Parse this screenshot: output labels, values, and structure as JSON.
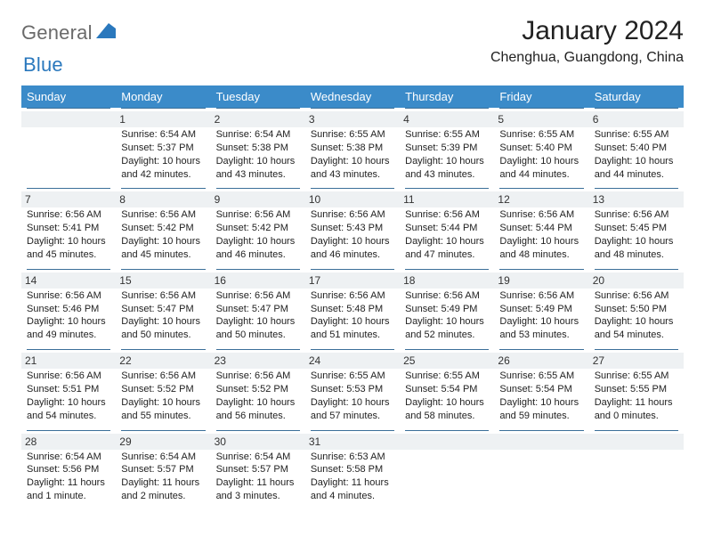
{
  "logo": {
    "word1": "General",
    "word2": "Blue"
  },
  "title": "January 2024",
  "location": "Chenghua, Guangdong, China",
  "colors": {
    "header_bg": "#3b8bc9",
    "header_text": "#ffffff",
    "day_border": "#3b6f99",
    "daynum_bg": "#eef1f3",
    "logo_gray": "#6a6a6a",
    "logo_blue": "#2a78bd",
    "page_bg": "#ffffff"
  },
  "weekdays": [
    "Sunday",
    "Monday",
    "Tuesday",
    "Wednesday",
    "Thursday",
    "Friday",
    "Saturday"
  ],
  "weeks": [
    [
      null,
      {
        "n": "1",
        "sr": "Sunrise: 6:54 AM",
        "ss": "Sunset: 5:37 PM",
        "dl": "Daylight: 10 hours and 42 minutes."
      },
      {
        "n": "2",
        "sr": "Sunrise: 6:54 AM",
        "ss": "Sunset: 5:38 PM",
        "dl": "Daylight: 10 hours and 43 minutes."
      },
      {
        "n": "3",
        "sr": "Sunrise: 6:55 AM",
        "ss": "Sunset: 5:38 PM",
        "dl": "Daylight: 10 hours and 43 minutes."
      },
      {
        "n": "4",
        "sr": "Sunrise: 6:55 AM",
        "ss": "Sunset: 5:39 PM",
        "dl": "Daylight: 10 hours and 43 minutes."
      },
      {
        "n": "5",
        "sr": "Sunrise: 6:55 AM",
        "ss": "Sunset: 5:40 PM",
        "dl": "Daylight: 10 hours and 44 minutes."
      },
      {
        "n": "6",
        "sr": "Sunrise: 6:55 AM",
        "ss": "Sunset: 5:40 PM",
        "dl": "Daylight: 10 hours and 44 minutes."
      }
    ],
    [
      {
        "n": "7",
        "sr": "Sunrise: 6:56 AM",
        "ss": "Sunset: 5:41 PM",
        "dl": "Daylight: 10 hours and 45 minutes."
      },
      {
        "n": "8",
        "sr": "Sunrise: 6:56 AM",
        "ss": "Sunset: 5:42 PM",
        "dl": "Daylight: 10 hours and 45 minutes."
      },
      {
        "n": "9",
        "sr": "Sunrise: 6:56 AM",
        "ss": "Sunset: 5:42 PM",
        "dl": "Daylight: 10 hours and 46 minutes."
      },
      {
        "n": "10",
        "sr": "Sunrise: 6:56 AM",
        "ss": "Sunset: 5:43 PM",
        "dl": "Daylight: 10 hours and 46 minutes."
      },
      {
        "n": "11",
        "sr": "Sunrise: 6:56 AM",
        "ss": "Sunset: 5:44 PM",
        "dl": "Daylight: 10 hours and 47 minutes."
      },
      {
        "n": "12",
        "sr": "Sunrise: 6:56 AM",
        "ss": "Sunset: 5:44 PM",
        "dl": "Daylight: 10 hours and 48 minutes."
      },
      {
        "n": "13",
        "sr": "Sunrise: 6:56 AM",
        "ss": "Sunset: 5:45 PM",
        "dl": "Daylight: 10 hours and 48 minutes."
      }
    ],
    [
      {
        "n": "14",
        "sr": "Sunrise: 6:56 AM",
        "ss": "Sunset: 5:46 PM",
        "dl": "Daylight: 10 hours and 49 minutes."
      },
      {
        "n": "15",
        "sr": "Sunrise: 6:56 AM",
        "ss": "Sunset: 5:47 PM",
        "dl": "Daylight: 10 hours and 50 minutes."
      },
      {
        "n": "16",
        "sr": "Sunrise: 6:56 AM",
        "ss": "Sunset: 5:47 PM",
        "dl": "Daylight: 10 hours and 50 minutes."
      },
      {
        "n": "17",
        "sr": "Sunrise: 6:56 AM",
        "ss": "Sunset: 5:48 PM",
        "dl": "Daylight: 10 hours and 51 minutes."
      },
      {
        "n": "18",
        "sr": "Sunrise: 6:56 AM",
        "ss": "Sunset: 5:49 PM",
        "dl": "Daylight: 10 hours and 52 minutes."
      },
      {
        "n": "19",
        "sr": "Sunrise: 6:56 AM",
        "ss": "Sunset: 5:49 PM",
        "dl": "Daylight: 10 hours and 53 minutes."
      },
      {
        "n": "20",
        "sr": "Sunrise: 6:56 AM",
        "ss": "Sunset: 5:50 PM",
        "dl": "Daylight: 10 hours and 54 minutes."
      }
    ],
    [
      {
        "n": "21",
        "sr": "Sunrise: 6:56 AM",
        "ss": "Sunset: 5:51 PM",
        "dl": "Daylight: 10 hours and 54 minutes."
      },
      {
        "n": "22",
        "sr": "Sunrise: 6:56 AM",
        "ss": "Sunset: 5:52 PM",
        "dl": "Daylight: 10 hours and 55 minutes."
      },
      {
        "n": "23",
        "sr": "Sunrise: 6:56 AM",
        "ss": "Sunset: 5:52 PM",
        "dl": "Daylight: 10 hours and 56 minutes."
      },
      {
        "n": "24",
        "sr": "Sunrise: 6:55 AM",
        "ss": "Sunset: 5:53 PM",
        "dl": "Daylight: 10 hours and 57 minutes."
      },
      {
        "n": "25",
        "sr": "Sunrise: 6:55 AM",
        "ss": "Sunset: 5:54 PM",
        "dl": "Daylight: 10 hours and 58 minutes."
      },
      {
        "n": "26",
        "sr": "Sunrise: 6:55 AM",
        "ss": "Sunset: 5:54 PM",
        "dl": "Daylight: 10 hours and 59 minutes."
      },
      {
        "n": "27",
        "sr": "Sunrise: 6:55 AM",
        "ss": "Sunset: 5:55 PM",
        "dl": "Daylight: 11 hours and 0 minutes."
      }
    ],
    [
      {
        "n": "28",
        "sr": "Sunrise: 6:54 AM",
        "ss": "Sunset: 5:56 PM",
        "dl": "Daylight: 11 hours and 1 minute."
      },
      {
        "n": "29",
        "sr": "Sunrise: 6:54 AM",
        "ss": "Sunset: 5:57 PM",
        "dl": "Daylight: 11 hours and 2 minutes."
      },
      {
        "n": "30",
        "sr": "Sunrise: 6:54 AM",
        "ss": "Sunset: 5:57 PM",
        "dl": "Daylight: 11 hours and 3 minutes."
      },
      {
        "n": "31",
        "sr": "Sunrise: 6:53 AM",
        "ss": "Sunset: 5:58 PM",
        "dl": "Daylight: 11 hours and 4 minutes."
      },
      null,
      null,
      null
    ]
  ]
}
